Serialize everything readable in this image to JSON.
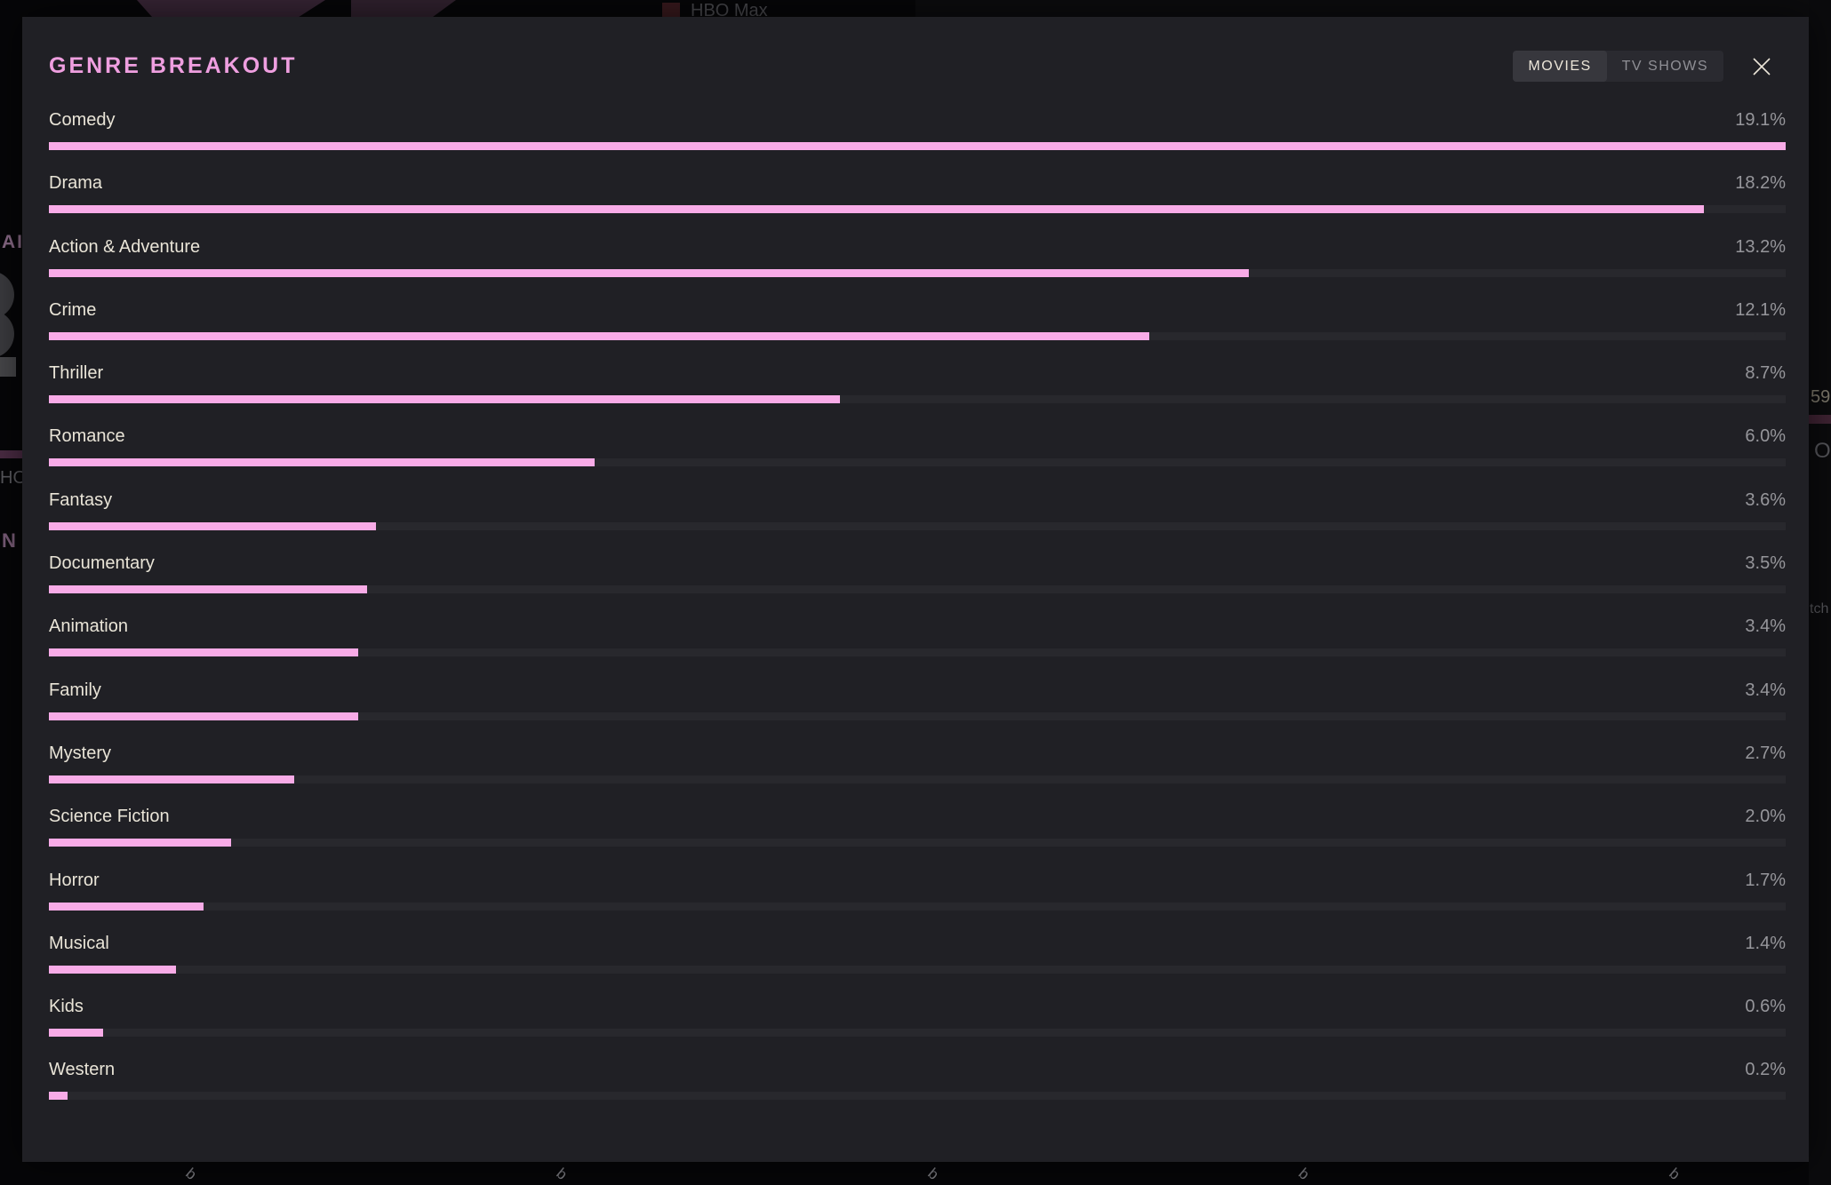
{
  "modal": {
    "title": "GENRE BREAKOUT",
    "tabs": [
      {
        "label": "MOVIES",
        "active": true
      },
      {
        "label": "TV SHOWS",
        "active": false
      }
    ]
  },
  "chart_data": {
    "type": "bar",
    "orientation": "horizontal",
    "title": "GENRE BREAKOUT",
    "unit": "%",
    "max_scale_value": 19.1,
    "categories": [
      "Comedy",
      "Drama",
      "Action & Adventure",
      "Crime",
      "Thriller",
      "Romance",
      "Fantasy",
      "Documentary",
      "Animation",
      "Family",
      "Mystery",
      "Science Fiction",
      "Horror",
      "Musical",
      "Kids",
      "Western"
    ],
    "values": [
      19.1,
      18.2,
      13.2,
      12.1,
      8.7,
      6.0,
      3.6,
      3.5,
      3.4,
      3.4,
      2.7,
      2.0,
      1.7,
      1.4,
      0.6,
      0.2
    ],
    "value_labels": [
      "19.1%",
      "18.2%",
      "13.2%",
      "12.1%",
      "8.7%",
      "6.0%",
      "3.6%",
      "3.5%",
      "3.4%",
      "3.4%",
      "2.7%",
      "2.0%",
      "1.7%",
      "1.4%",
      "0.6%",
      "0.2%"
    ]
  },
  "background": {
    "legend_item": "HBO Max",
    "edge_fragments": {
      "left_top": "AI",
      "left_mid": "HO",
      "left_bottom": "N",
      "right_top": "59",
      "right_mid": "O",
      "right_low": "tch"
    },
    "bottom_axis_fragments": [
      "b",
      "b",
      "b",
      "b",
      "b"
    ],
    "bottom_axis_positions": [
      208,
      625,
      1043,
      1460,
      1877
    ]
  },
  "colors": {
    "accent_pink": "#f8abe7",
    "title_pink": "#ef9fe0",
    "modal_bg": "#202025",
    "bar_track": "#28282d",
    "label_cream": "#e9e4d7",
    "percent_gray": "#96969b",
    "legend_red": "#38191d"
  }
}
